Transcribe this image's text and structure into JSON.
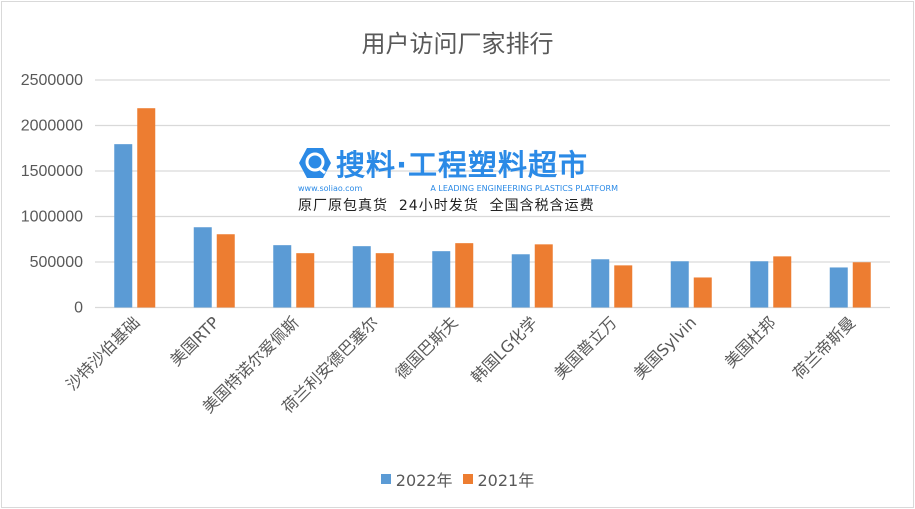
{
  "chart_data": {
    "type": "bar",
    "title": "用户访问厂家排行",
    "xlabel": "",
    "ylabel": "",
    "ylim": [
      0,
      2500000
    ],
    "yticks": [
      "0",
      "500000",
      "1000000",
      "1500000",
      "2000000",
      "2500000"
    ],
    "grid": true,
    "legend_position": "bottom",
    "categories": [
      "沙特沙伯基础",
      "美国RTP",
      "美国特诺尔爱佩斯",
      "荷兰利安德巴塞尔",
      "德国巴斯夫",
      "韩国LG化学",
      "美国普立万",
      "美国Sylvin",
      "美国杜邦",
      "荷兰帝斯曼"
    ],
    "series": [
      {
        "name": "2022年",
        "color": "#5b9bd5",
        "values": [
          1795000,
          882000,
          685000,
          674000,
          619000,
          585000,
          530000,
          508000,
          508000,
          440000
        ]
      },
      {
        "name": "2021年",
        "color": "#ed7d31",
        "values": [
          2190000,
          805000,
          597000,
          597000,
          707000,
          694000,
          463000,
          330000,
          562000,
          497000
        ]
      }
    ]
  },
  "watermark": {
    "brand": "搜料·工程塑料超市",
    "url": "www.soliao.com",
    "tagline": "A LEADING ENGINEERING PLASTICS PLATFORM",
    "slogan": "原厂原包真货  24小时发货  全国含税含运费"
  }
}
